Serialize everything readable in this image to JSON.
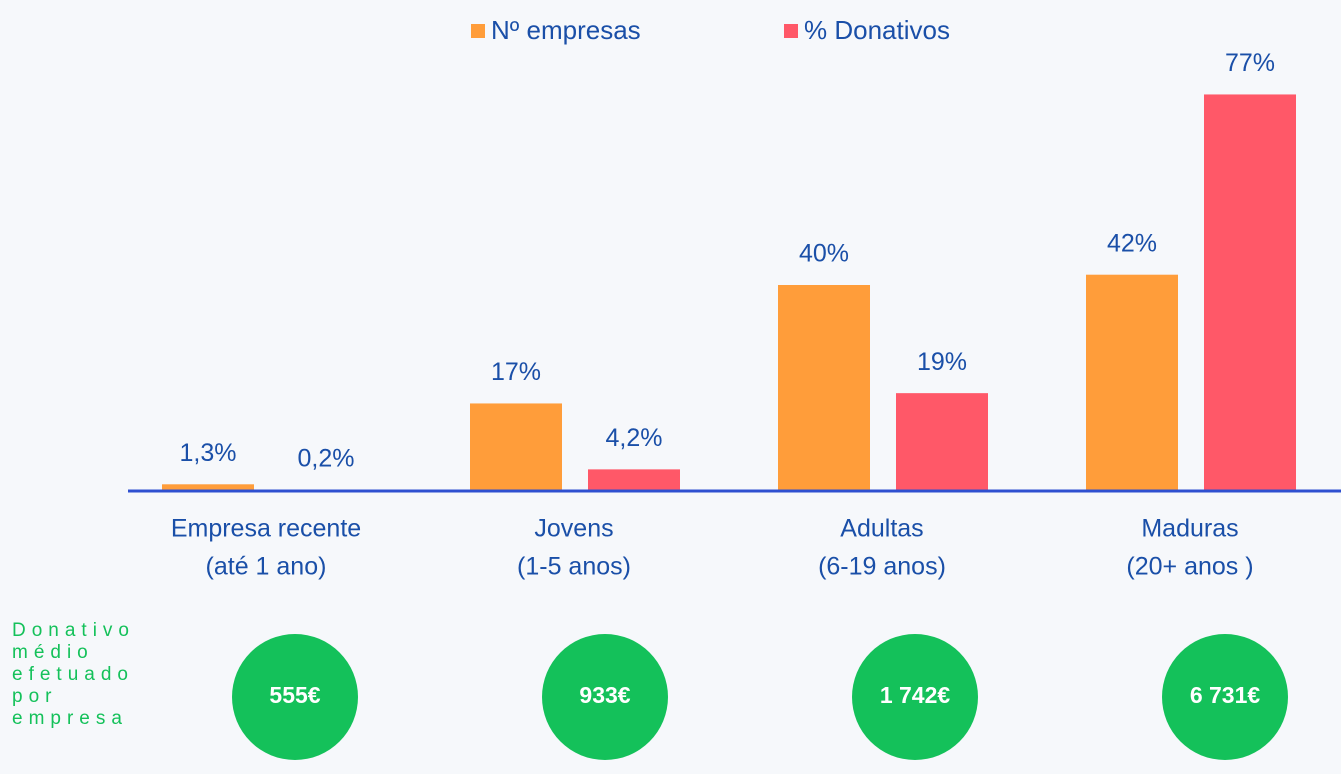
{
  "chart_data": {
    "type": "bar",
    "categories": [
      [
        "Empresa recente",
        "(até 1 ano)"
      ],
      [
        "Jovens",
        "(1-5 anos)"
      ],
      [
        "Adultas",
        "(6-19 anos)"
      ],
      [
        "Maduras",
        "(20+ anos )"
      ]
    ],
    "series": [
      {
        "name": "Nº empresas",
        "color": "#ff9d3a",
        "values": [
          1.3,
          17,
          40,
          42
        ],
        "value_labels": [
          "1,3%",
          "17%",
          "40%",
          "42%"
        ]
      },
      {
        "name": "% Donativos",
        "color": "#ff5868",
        "values": [
          0.2,
          4.2,
          19,
          77
        ],
        "value_labels": [
          "0,2%",
          "4,2%",
          "19%",
          "77%"
        ]
      }
    ],
    "ylim": [
      0,
      80
    ],
    "legend": "top",
    "average_donation": {
      "label": "Donativo médio efetuado por empresa",
      "color": "#14c15a",
      "values": [
        555,
        933,
        1742,
        6731
      ],
      "value_labels": [
        "555€",
        "933€",
        "1 742€",
        "6 731€"
      ]
    }
  }
}
